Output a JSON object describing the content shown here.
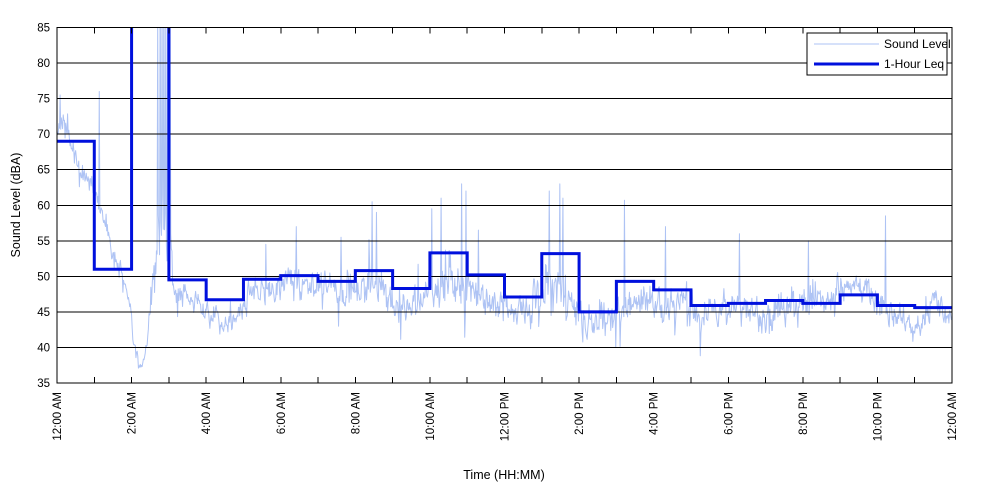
{
  "figure": {
    "background": "#ffffff",
    "axes_box_color": "#000000"
  },
  "chart_data": {
    "type": "line",
    "title": "",
    "xlabel": "Time (HH:MM)",
    "ylabel": "Sound Level (dBA)",
    "xlim_hours": [
      0,
      24
    ],
    "ylim": [
      35,
      85
    ],
    "y_ticks": [
      35,
      40,
      45,
      50,
      55,
      60,
      65,
      70,
      75,
      80,
      85
    ],
    "x_major_ticks": {
      "hours": [
        0,
        2,
        4,
        6,
        8,
        10,
        12,
        14,
        16,
        18,
        20,
        22,
        24
      ],
      "labels": [
        "12:00 AM",
        "2:00 AM",
        "4:00 AM",
        "6:00 AM",
        "8:00 AM",
        "10:00 AM",
        "12:00 PM",
        "2:00 PM",
        "4:00 PM",
        "6:00 PM",
        "8:00 PM",
        "10:00 PM",
        "12:00 AM"
      ]
    },
    "x_minor_tick_interval_hours": 1,
    "grid": {
      "horizontal": true,
      "vertical": false,
      "color": "#000000"
    },
    "legend": {
      "position": "top-right",
      "entries": [
        {
          "label": "Sound Level",
          "color": "#aec3f4",
          "line_width": 1
        },
        {
          "label": "1-Hour Leq",
          "color": "#0010dd",
          "line_width": 3
        }
      ]
    },
    "series": [
      {
        "name": "1-Hour Leq",
        "render": "hourly-step",
        "hourly_leq_dBA": [
          69,
          51,
          null,
          49.5,
          46.7,
          49.6,
          50.1,
          49.3,
          50.8,
          48.3,
          53.3,
          50.2,
          47.1,
          53.2,
          45,
          49.3,
          48.1,
          45.9,
          46.2,
          46.6,
          46.2,
          47.4,
          45.9,
          45.6
        ],
        "off_scale_note": "2:00-3:00 AM Leq exceeds the 85 dBA axis limit (step drawn clipped at top of axes)"
      },
      {
        "name": "Sound Level",
        "render": "noisy-trace",
        "envelope_format": "[hour, center_dBA, spread_dBA]",
        "envelope": [
          [
            0,
            70,
            3
          ],
          [
            0.12,
            72,
            3
          ],
          [
            0.35,
            68.5,
            2.5
          ],
          [
            0.7,
            65,
            2.5
          ],
          [
            1.0,
            62,
            2.5
          ],
          [
            1.3,
            57,
            2.2
          ],
          [
            1.6,
            52,
            2
          ],
          [
            1.9,
            47.5,
            2
          ],
          [
            2.05,
            41,
            3
          ],
          [
            2.2,
            37.3,
            1.8
          ],
          [
            2.35,
            38.5,
            2.2
          ],
          [
            2.5,
            44,
            3.5
          ],
          [
            2.65,
            50,
            6
          ],
          [
            2.8,
            57,
            11
          ],
          [
            3.0,
            57,
            11
          ],
          [
            3.1,
            48,
            3
          ],
          [
            3.5,
            47,
            3
          ],
          [
            4.0,
            45.5,
            2.6
          ],
          [
            4.4,
            43.2,
            2.2
          ],
          [
            4.8,
            44.5,
            2.6
          ],
          [
            5.2,
            47.8,
            2.6
          ],
          [
            5.8,
            48.5,
            2.8
          ],
          [
            6.3,
            49.5,
            3
          ],
          [
            7.0,
            48.5,
            3.2
          ],
          [
            7.5,
            48,
            3.4
          ],
          [
            8.0,
            48.5,
            4
          ],
          [
            8.5,
            48.8,
            4.4
          ],
          [
            9.0,
            46.5,
            4
          ],
          [
            9.5,
            45.8,
            4
          ],
          [
            10.0,
            48.3,
            4.4
          ],
          [
            10.5,
            49,
            4.4
          ],
          [
            11.0,
            48,
            4.2
          ],
          [
            11.5,
            47,
            4
          ],
          [
            12.0,
            45.6,
            4
          ],
          [
            12.5,
            44.8,
            3.6
          ],
          [
            13.0,
            47.5,
            4.6
          ],
          [
            13.5,
            48.8,
            5
          ],
          [
            14.0,
            44,
            4
          ],
          [
            14.5,
            42.4,
            3.4
          ],
          [
            15.0,
            45.2,
            4
          ],
          [
            15.5,
            46,
            4
          ],
          [
            16.0,
            46.4,
            4
          ],
          [
            16.5,
            46,
            4
          ],
          [
            17.0,
            45.4,
            4
          ],
          [
            17.5,
            44.8,
            3.6
          ],
          [
            18.0,
            45.4,
            3.6
          ],
          [
            18.5,
            45.6,
            3.6
          ],
          [
            19.0,
            45,
            3.6
          ],
          [
            19.5,
            45.4,
            3.6
          ],
          [
            20.0,
            46.2,
            3.4
          ],
          [
            20.6,
            47,
            3
          ],
          [
            21.2,
            49,
            2.8
          ],
          [
            21.7,
            48.6,
            3
          ],
          [
            22.1,
            45.8,
            3.4
          ],
          [
            22.6,
            44.4,
            3.2
          ],
          [
            23.05,
            43,
            3
          ],
          [
            23.35,
            44,
            3
          ],
          [
            23.55,
            48.5,
            2.4
          ],
          [
            23.75,
            44.5,
            2.6
          ],
          [
            24,
            44.5,
            2.6
          ]
        ],
        "spikes_format": "[hour, peak_dBA]",
        "spikes": [
          [
            0.08,
            75.5
          ],
          [
            1.13,
            76
          ],
          [
            2.7,
            87
          ],
          [
            2.76,
            96
          ],
          [
            2.81,
            90
          ],
          [
            2.86,
            96
          ],
          [
            2.91,
            88
          ],
          [
            2.96,
            96
          ],
          [
            3.03,
            92
          ],
          [
            5.6,
            54.5
          ],
          [
            6.42,
            57
          ],
          [
            7.62,
            55.5
          ],
          [
            8.45,
            60.5
          ],
          [
            8.56,
            59
          ],
          [
            10.05,
            59.5
          ],
          [
            10.3,
            61
          ],
          [
            10.85,
            63
          ],
          [
            10.97,
            62
          ],
          [
            11.3,
            56.5
          ],
          [
            13.2,
            62
          ],
          [
            13.48,
            63
          ],
          [
            13.56,
            61
          ],
          [
            15.22,
            60.7
          ],
          [
            16.32,
            57
          ],
          [
            18.3,
            56
          ],
          [
            20.15,
            55
          ],
          [
            22.22,
            58.5
          ]
        ]
      }
    ]
  }
}
